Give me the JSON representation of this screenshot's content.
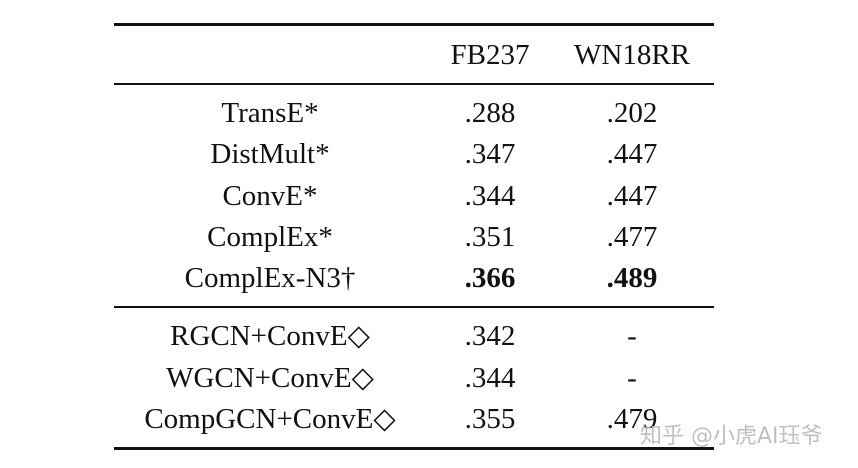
{
  "table": {
    "headers": [
      "",
      "FB237",
      "WN18RR"
    ],
    "groups": [
      [
        {
          "method": "TransE*",
          "fb237": ".288",
          "wn18rr": ".202",
          "bold": false
        },
        {
          "method": "DistMult*",
          "fb237": ".347",
          "wn18rr": ".447",
          "bold": false
        },
        {
          "method": "ConvE*",
          "fb237": ".344",
          "wn18rr": ".447",
          "bold": false
        },
        {
          "method": "ComplEx*",
          "fb237": ".351",
          "wn18rr": ".477",
          "bold": false
        },
        {
          "method": "ComplEx-N3†",
          "fb237": ".366",
          "wn18rr": ".489",
          "bold": true
        }
      ],
      [
        {
          "method": "RGCN+ConvE◇",
          "fb237": ".342",
          "wn18rr": "-",
          "bold": false
        },
        {
          "method": "WGCN+ConvE◇",
          "fb237": ".344",
          "wn18rr": "-",
          "bold": false
        },
        {
          "method": "CompGCN+ConvE◇",
          "fb237": ".355",
          "wn18rr": ".479",
          "bold": false
        }
      ]
    ]
  },
  "watermark": "知乎 @小虎AI珏爷"
}
